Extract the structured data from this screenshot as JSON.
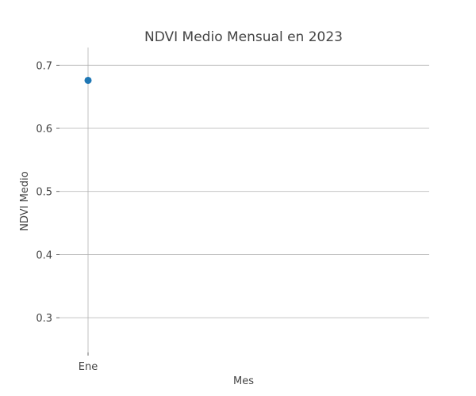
{
  "chart_data": {
    "type": "scatter",
    "title": "NDVI Medio Mensual en 2023",
    "xlabel": "Mes",
    "ylabel": "NDVI Medio",
    "categories": [
      "Ene"
    ],
    "series": [
      {
        "values": [
          0.676
        ],
        "color": "#1f77b4"
      }
    ],
    "ylim": [
      0.245,
      0.728
    ],
    "yticks": [
      0.3,
      0.4,
      0.5,
      0.6,
      0.7
    ],
    "ytick_labels": [
      "0.3",
      "0.4",
      "0.5",
      "0.6",
      "0.7"
    ],
    "grid": true,
    "grid_color": "#b0b0b0",
    "legend": "none"
  }
}
